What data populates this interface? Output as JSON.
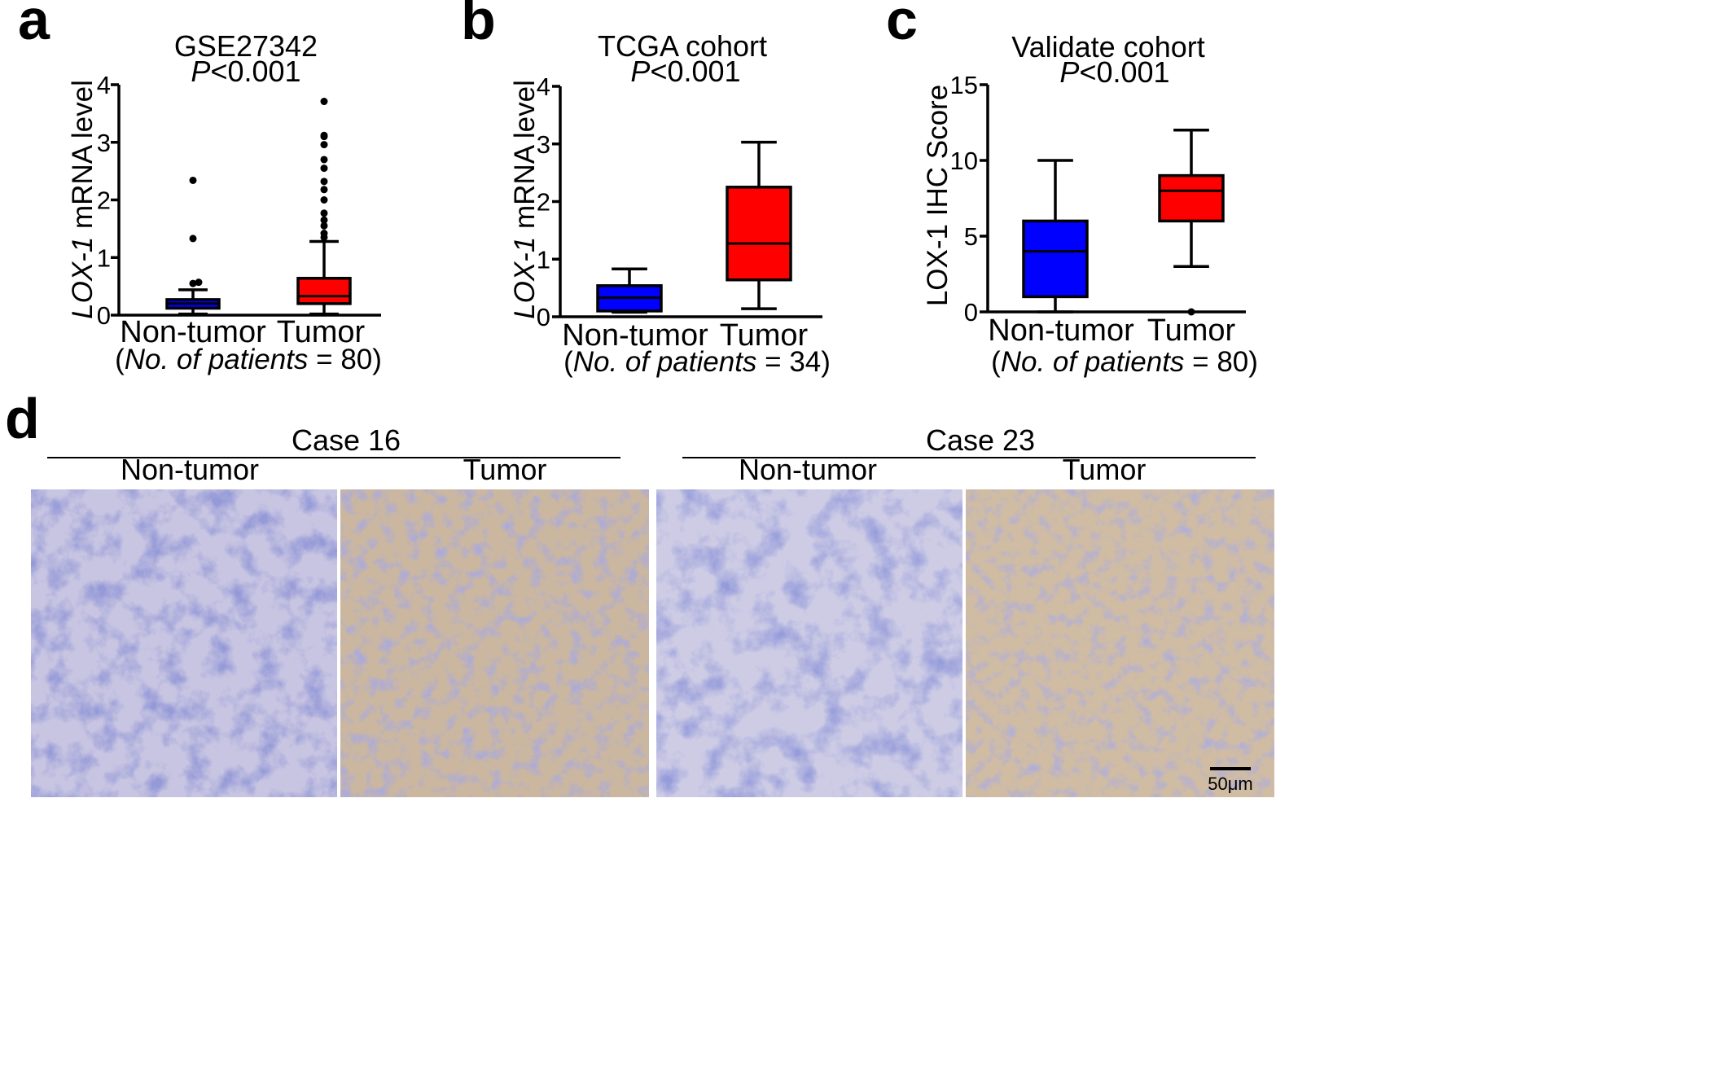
{
  "chart_data": [
    {
      "type": "box",
      "panel": "a",
      "title": "GSE27342",
      "pvalue": {
        "italic": "P",
        "rest": "<0.001"
      },
      "ylabel": {
        "italic": "LOX-1",
        "rest": " mRNA level"
      },
      "ylim": [
        0,
        4
      ],
      "yticks": [
        0,
        1,
        2,
        3,
        4
      ],
      "categories": [
        "Non-tumor",
        "Tumor"
      ],
      "note": {
        "open": "(",
        "italic": "No. of patients",
        "rest": " = 80)"
      },
      "boxes": [
        {
          "color": "#0000ff",
          "min": 0.02,
          "q1": 0.12,
          "median": 0.2,
          "q3": 0.27,
          "max": 0.44,
          "outliers": [
            0.55,
            0.57,
            1.33,
            2.34
          ]
        },
        {
          "color": "#ff0000",
          "min": 0.02,
          "q1": 0.2,
          "median": 0.33,
          "q3": 0.64,
          "max": 1.28,
          "outliers": [
            1.35,
            1.42,
            1.55,
            1.65,
            1.77,
            2.0,
            2.18,
            2.32,
            2.55,
            2.7,
            2.96,
            3.1,
            3.12,
            3.71
          ]
        }
      ]
    },
    {
      "type": "box",
      "panel": "b",
      "title": "TCGA cohort",
      "pvalue": {
        "italic": "P",
        "rest": "<0.001"
      },
      "ylabel": {
        "italic": "LOX-1",
        "rest": " mRNA level"
      },
      "ylim": [
        0,
        4
      ],
      "yticks": [
        0,
        1,
        2,
        3,
        4
      ],
      "categories": [
        "Non-tumor",
        "Tumor"
      ],
      "note": {
        "open": "(",
        "italic": "No. of patients",
        "rest": " = 34)"
      },
      "boxes": [
        {
          "color": "#0000ff",
          "min": 0.08,
          "q1": 0.1,
          "median": 0.33,
          "q3": 0.54,
          "max": 0.83,
          "outliers": []
        },
        {
          "color": "#ff0000",
          "min": 0.14,
          "q1": 0.64,
          "median": 1.27,
          "q3": 2.25,
          "max": 3.03,
          "outliers": []
        }
      ]
    },
    {
      "type": "box",
      "panel": "c",
      "title": "Validate cohort",
      "pvalue": {
        "italic": "P",
        "rest": "<0.001"
      },
      "ylabel": {
        "italic": "",
        "rest": "LOX-1 IHC Score"
      },
      "ylim": [
        0,
        15
      ],
      "yticks": [
        0,
        5,
        10,
        15
      ],
      "categories": [
        "Non-tumor",
        "Tumor"
      ],
      "note": {
        "open": "(",
        "italic": "No. of patients",
        "rest": " = 80)"
      },
      "boxes": [
        {
          "color": "#0000ff",
          "min": 0,
          "q1": 1,
          "median": 4,
          "q3": 6,
          "max": 10,
          "outliers": []
        },
        {
          "color": "#ff0000",
          "min": 3,
          "q1": 6,
          "median": 8,
          "q3": 9,
          "max": 12,
          "outliers": [
            0
          ]
        }
      ]
    }
  ],
  "panel_d": {
    "label": "d",
    "groups": [
      {
        "title": "Case 16",
        "columns": [
          "Non-tumor",
          "Tumor"
        ]
      },
      {
        "title": "Case 23",
        "columns": [
          "Non-tumor",
          "Tumor"
        ]
      }
    ],
    "images": [
      {
        "description": "IHC stained non-tumor gastric mucosa",
        "stain": "blue-dominant",
        "colors": [
          "#5a5fae",
          "#c9c6e3"
        ]
      },
      {
        "description": "IHC stained gastric tumor tissue",
        "stain": "brown-positive",
        "colors": [
          "#6e6fb8",
          "#cdb89f"
        ]
      },
      {
        "description": "IHC stained non-tumor gastric mucosa",
        "stain": "blue-dominant",
        "colors": [
          "#5c62b2",
          "#cfcde6"
        ]
      },
      {
        "description": "IHC stained gastric tumor tissue",
        "stain": "brown-positive",
        "colors": [
          "#7271b6",
          "#d1bda3"
        ]
      }
    ],
    "scale_bar": "50μm"
  }
}
